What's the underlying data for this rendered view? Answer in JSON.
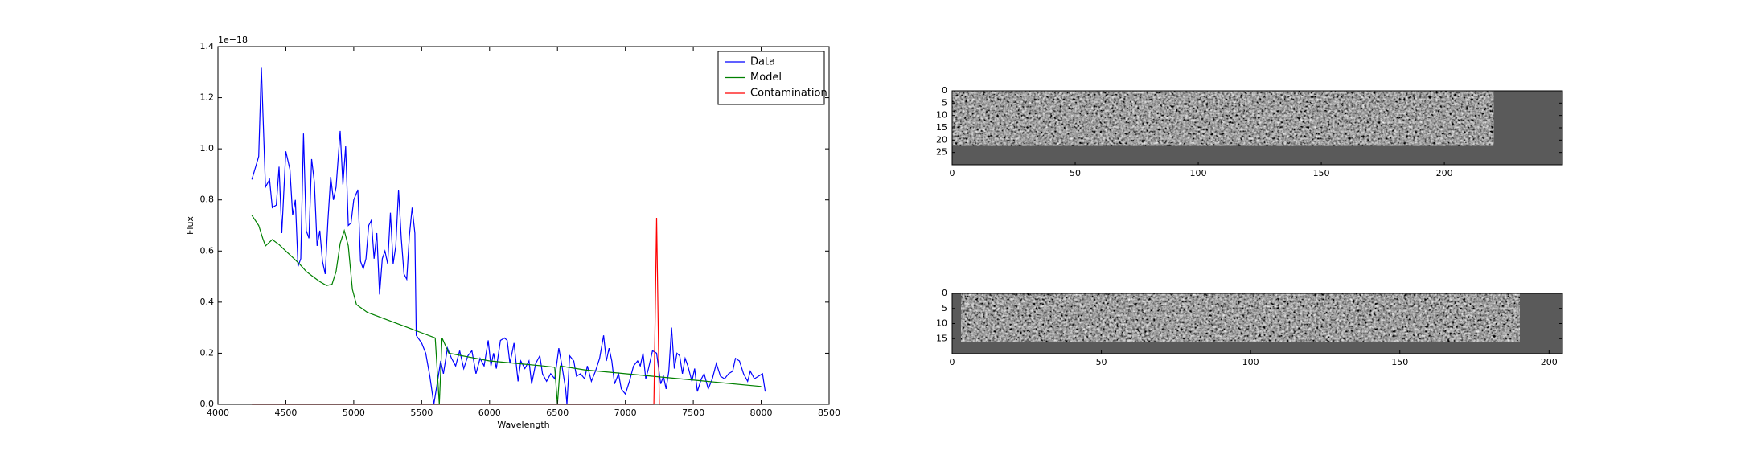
{
  "chart_data": [
    {
      "type": "line",
      "xlabel": "Wavelength",
      "ylabel": "Flux",
      "offset_text": "1e−18",
      "xlim": [
        4000,
        8500
      ],
      "ylim": [
        0,
        1.4
      ],
      "xticks": [
        4000,
        4500,
        5000,
        5500,
        6000,
        6500,
        7000,
        7500,
        8000,
        8500
      ],
      "yticks": [
        {
          "value": 0,
          "label": "0.0"
        },
        {
          "value": 0.2,
          "label": "0.2"
        },
        {
          "value": 0.4,
          "label": "0.4"
        },
        {
          "value": 0.6,
          "label": "0.6"
        },
        {
          "value": 0.8,
          "label": "0.8"
        },
        {
          "value": 1.0,
          "label": "1.0"
        },
        {
          "value": 1.2,
          "label": "1.2"
        },
        {
          "value": 1.4,
          "label": "1.4"
        }
      ],
      "legend": "upper right",
      "series": [
        {
          "name": "Data",
          "color": "#0000ff",
          "x": [
            4250,
            4300,
            4320,
            4350,
            4380,
            4400,
            4430,
            4450,
            4470,
            4500,
            4530,
            4550,
            4570,
            4590,
            4610,
            4630,
            4650,
            4670,
            4690,
            4710,
            4730,
            4750,
            4770,
            4790,
            4810,
            4830,
            4850,
            4870,
            4900,
            4920,
            4940,
            4960,
            4980,
            5000,
            5030,
            5050,
            5070,
            5090,
            5110,
            5130,
            5150,
            5170,
            5190,
            5210,
            5230,
            5250,
            5270,
            5290,
            5310,
            5330,
            5350,
            5370,
            5390,
            5410,
            5430,
            5450,
            5460,
            5500,
            5530,
            5560,
            5590,
            5620,
            5640,
            5660,
            5690,
            5720,
            5750,
            5780,
            5810,
            5840,
            5870,
            5900,
            5930,
            5960,
            5990,
            6010,
            6030,
            6050,
            6080,
            6110,
            6130,
            6150,
            6180,
            6210,
            6230,
            6260,
            6290,
            6310,
            6340,
            6370,
            6390,
            6420,
            6450,
            6480,
            6510,
            6530,
            6560,
            6570,
            6590,
            6620,
            6640,
            6670,
            6700,
            6720,
            6750,
            6780,
            6810,
            6840,
            6860,
            6880,
            6900,
            6920,
            6950,
            6970,
            7000,
            7030,
            7060,
            7090,
            7110,
            7130,
            7150,
            7170,
            7200,
            7230,
            7260,
            7280,
            7300,
            7320,
            7340,
            7360,
            7380,
            7400,
            7420,
            7440,
            7460,
            7490,
            7510,
            7530,
            7560,
            7580,
            7610,
            7640,
            7670,
            7700,
            7730,
            7760,
            7790,
            7810,
            7840,
            7870,
            7900,
            7920,
            7950,
            7980,
            8010,
            8030
          ],
          "values": [
            0.88,
            0.97,
            1.32,
            0.85,
            0.88,
            0.77,
            0.78,
            0.93,
            0.67,
            0.99,
            0.92,
            0.74,
            0.8,
            0.54,
            0.57,
            1.06,
            0.68,
            0.65,
            0.96,
            0.87,
            0.62,
            0.68,
            0.56,
            0.51,
            0.72,
            0.89,
            0.8,
            0.85,
            1.07,
            0.86,
            1.01,
            0.7,
            0.71,
            0.8,
            0.84,
            0.56,
            0.53,
            0.57,
            0.7,
            0.72,
            0.57,
            0.67,
            0.43,
            0.57,
            0.6,
            0.55,
            0.75,
            0.55,
            0.62,
            0.84,
            0.65,
            0.51,
            0.49,
            0.66,
            0.77,
            0.67,
            0.27,
            0.24,
            0.2,
            0.11,
            0.0,
            0.1,
            0.17,
            0.12,
            0.22,
            0.18,
            0.15,
            0.21,
            0.14,
            0.19,
            0.21,
            0.12,
            0.18,
            0.15,
            0.25,
            0.15,
            0.2,
            0.14,
            0.25,
            0.26,
            0.25,
            0.16,
            0.24,
            0.09,
            0.17,
            0.14,
            0.17,
            0.08,
            0.16,
            0.19,
            0.12,
            0.09,
            0.12,
            0.1,
            0.22,
            0.16,
            0.06,
            0.0,
            0.19,
            0.17,
            0.11,
            0.12,
            0.1,
            0.15,
            0.09,
            0.13,
            0.18,
            0.27,
            0.17,
            0.22,
            0.17,
            0.08,
            0.12,
            0.06,
            0.04,
            0.09,
            0.15,
            0.17,
            0.15,
            0.2,
            0.1,
            0.14,
            0.21,
            0.2,
            0.08,
            0.11,
            0.06,
            0.13,
            0.3,
            0.14,
            0.2,
            0.19,
            0.12,
            0.18,
            0.15,
            0.09,
            0.14,
            0.05,
            0.1,
            0.12,
            0.06,
            0.1,
            0.16,
            0.11,
            0.1,
            0.12,
            0.13,
            0.18,
            0.17,
            0.12,
            0.09,
            0.13,
            0.1,
            0.11,
            0.12,
            0.05
          ]
        },
        {
          "name": "Model",
          "color": "#008000",
          "x": [
            4250,
            4300,
            4330,
            4350,
            4400,
            4450,
            4500,
            4550,
            4600,
            4650,
            4700,
            4750,
            4800,
            4840,
            4870,
            4900,
            4930,
            4960,
            4990,
            5020,
            5100,
            5200,
            5300,
            5400,
            5500,
            5600,
            5630,
            5650,
            5700,
            5800,
            5900,
            6000,
            6200,
            6400,
            6480,
            6500,
            6520,
            6700,
            7000,
            7300,
            7600,
            8000
          ],
          "values": [
            0.74,
            0.7,
            0.65,
            0.62,
            0.645,
            0.625,
            0.6,
            0.575,
            0.55,
            0.52,
            0.5,
            0.48,
            0.465,
            0.47,
            0.52,
            0.63,
            0.68,
            0.62,
            0.45,
            0.39,
            0.36,
            0.34,
            0.32,
            0.3,
            0.28,
            0.26,
            0.0,
            0.26,
            0.2,
            0.19,
            0.18,
            0.17,
            0.16,
            0.15,
            0.145,
            0.0,
            0.15,
            0.135,
            0.12,
            0.105,
            0.09,
            0.07
          ]
        },
        {
          "name": "Contamination",
          "color": "#ff0000",
          "x": [
            4250,
            7210,
            7230,
            7250,
            8000
          ],
          "values": [
            0,
            0,
            0.73,
            0,
            0
          ]
        }
      ]
    },
    {
      "type": "image",
      "xlim": [
        0,
        248
      ],
      "ylim": [
        30,
        0
      ],
      "xticks": [
        0,
        50,
        100,
        150,
        200
      ],
      "yticks": [
        0,
        5,
        10,
        15,
        20,
        25
      ]
    },
    {
      "type": "image",
      "xlim": [
        0,
        204.5
      ],
      "ylim": [
        20,
        0
      ],
      "xticks": [
        0,
        50,
        100,
        150,
        200
      ],
      "yticks": [
        0,
        5,
        10,
        15
      ]
    }
  ]
}
